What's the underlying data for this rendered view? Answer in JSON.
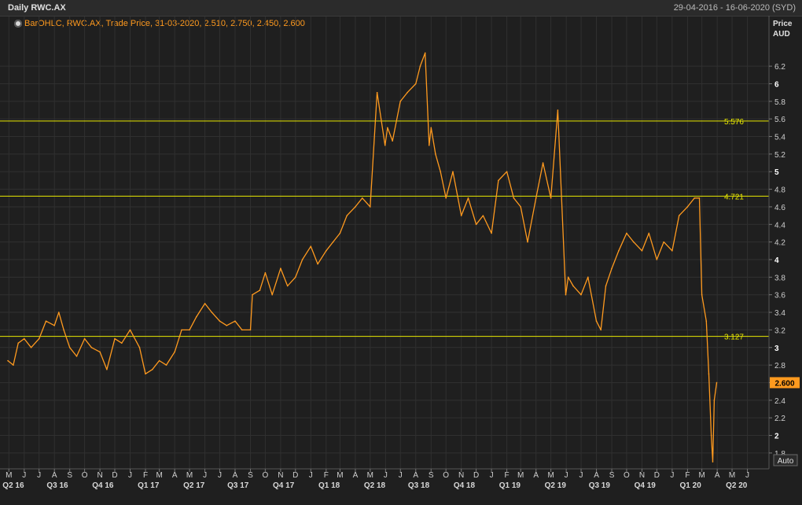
{
  "header": {
    "title": "Daily RWC.AX",
    "date_range": "29-04-2016 - 16-06-2020 (SYD)"
  },
  "legend": {
    "text": "BarOHLC, RWC.AX, Trade Price, 31-03-2020, 2.510, 2.750, 2.450, 2.600",
    "icon": "pin-icon"
  },
  "axis": {
    "price_label": "Price",
    "currency_label": "AUD",
    "auto_label": "Auto"
  },
  "colors": {
    "background": "#1f1f1f",
    "price_line": "#ff9a1f",
    "hline": "#e8e800",
    "grid": "#303030",
    "last_tag_bg": "#ff9a1f"
  },
  "chart_data": {
    "type": "line",
    "title": "Daily RWC.AX",
    "ylabel": "Price AUD",
    "ylim": [
      1.62,
      6.55
    ],
    "y_ticks": [
      1.8,
      2,
      2.2,
      2.4,
      2.6,
      2.8,
      3,
      3.2,
      3.4,
      3.6,
      3.8,
      4,
      4.2,
      4.4,
      4.6,
      4.8,
      5,
      5.2,
      5.4,
      5.6,
      5.8,
      6,
      6.2
    ],
    "y_tick_labels": [
      "1.8",
      "2",
      "2.2",
      "2.4",
      "2.6",
      "2.8",
      "3",
      "3.2",
      "3.4",
      "3.6",
      "3.8",
      "4",
      "4.2",
      "4.4",
      "4.6",
      "4.8",
      "5",
      "5.2",
      "5.4",
      "5.6",
      "5.8",
      "6",
      "6.2"
    ],
    "major_y_ticks": [
      2,
      3,
      4,
      5,
      6
    ],
    "x_range": [
      "2016-04-29",
      "2020-06-16"
    ],
    "months": [
      {
        "label": "M",
        "date": "2016-05-01"
      },
      {
        "label": "J",
        "date": "2016-06-01"
      },
      {
        "label": "J",
        "date": "2016-07-01"
      },
      {
        "label": "A",
        "date": "2016-08-01"
      },
      {
        "label": "S",
        "date": "2016-09-01"
      },
      {
        "label": "O",
        "date": "2016-10-01"
      },
      {
        "label": "N",
        "date": "2016-11-01"
      },
      {
        "label": "D",
        "date": "2016-12-01"
      },
      {
        "label": "J",
        "date": "2017-01-01"
      },
      {
        "label": "F",
        "date": "2017-02-01"
      },
      {
        "label": "M",
        "date": "2017-03-01"
      },
      {
        "label": "A",
        "date": "2017-04-01"
      },
      {
        "label": "M",
        "date": "2017-05-01"
      },
      {
        "label": "J",
        "date": "2017-06-01"
      },
      {
        "label": "J",
        "date": "2017-07-01"
      },
      {
        "label": "A",
        "date": "2017-08-01"
      },
      {
        "label": "S",
        "date": "2017-09-01"
      },
      {
        "label": "O",
        "date": "2017-10-01"
      },
      {
        "label": "N",
        "date": "2017-11-01"
      },
      {
        "label": "D",
        "date": "2017-12-01"
      },
      {
        "label": "J",
        "date": "2018-01-01"
      },
      {
        "label": "F",
        "date": "2018-02-01"
      },
      {
        "label": "M",
        "date": "2018-03-01"
      },
      {
        "label": "A",
        "date": "2018-04-01"
      },
      {
        "label": "M",
        "date": "2018-05-01"
      },
      {
        "label": "J",
        "date": "2018-06-01"
      },
      {
        "label": "J",
        "date": "2018-07-01"
      },
      {
        "label": "A",
        "date": "2018-08-01"
      },
      {
        "label": "S",
        "date": "2018-09-01"
      },
      {
        "label": "O",
        "date": "2018-10-01"
      },
      {
        "label": "N",
        "date": "2018-11-01"
      },
      {
        "label": "D",
        "date": "2018-12-01"
      },
      {
        "label": "J",
        "date": "2019-01-01"
      },
      {
        "label": "F",
        "date": "2019-02-01"
      },
      {
        "label": "M",
        "date": "2019-03-01"
      },
      {
        "label": "A",
        "date": "2019-04-01"
      },
      {
        "label": "M",
        "date": "2019-05-01"
      },
      {
        "label": "J",
        "date": "2019-06-01"
      },
      {
        "label": "J",
        "date": "2019-07-01"
      },
      {
        "label": "A",
        "date": "2019-08-01"
      },
      {
        "label": "S",
        "date": "2019-09-01"
      },
      {
        "label": "O",
        "date": "2019-10-01"
      },
      {
        "label": "N",
        "date": "2019-11-01"
      },
      {
        "label": "D",
        "date": "2019-12-01"
      },
      {
        "label": "J",
        "date": "2020-01-01"
      },
      {
        "label": "F",
        "date": "2020-02-01"
      },
      {
        "label": "M",
        "date": "2020-03-01"
      },
      {
        "label": "A",
        "date": "2020-04-01"
      },
      {
        "label": "M",
        "date": "2020-05-01"
      },
      {
        "label": "J",
        "date": "2020-06-01"
      }
    ],
    "quarters": [
      {
        "label": "Q2 16",
        "date": "2016-05-10"
      },
      {
        "label": "Q3 16",
        "date": "2016-08-07"
      },
      {
        "label": "Q4 16",
        "date": "2016-11-07"
      },
      {
        "label": "Q1 17",
        "date": "2017-02-07"
      },
      {
        "label": "Q2 17",
        "date": "2017-05-10"
      },
      {
        "label": "Q3 17",
        "date": "2017-08-07"
      },
      {
        "label": "Q4 17",
        "date": "2017-11-07"
      },
      {
        "label": "Q1 18",
        "date": "2018-02-07"
      },
      {
        "label": "Q2 18",
        "date": "2018-05-10"
      },
      {
        "label": "Q3 18",
        "date": "2018-08-07"
      },
      {
        "label": "Q4 18",
        "date": "2018-11-07"
      },
      {
        "label": "Q1 19",
        "date": "2019-02-07"
      },
      {
        "label": "Q2 19",
        "date": "2019-05-10"
      },
      {
        "label": "Q3 19",
        "date": "2019-08-07"
      },
      {
        "label": "Q4 19",
        "date": "2019-11-07"
      },
      {
        "label": "Q1 20",
        "date": "2020-02-07"
      },
      {
        "label": "Q2 20",
        "date": "2020-05-10"
      }
    ],
    "horizontal_lines": [
      {
        "value": 5.576,
        "label": "5.576"
      },
      {
        "value": 4.721,
        "label": "4.721"
      },
      {
        "value": 3.127,
        "label": "3.127"
      }
    ],
    "last_price": {
      "value": 2.6,
      "label": "2.600"
    },
    "series": [
      {
        "x": [
          "2016-04-29",
          "2016-05-10",
          "2016-05-20",
          "2016-06-01",
          "2016-06-15",
          "2016-07-01",
          "2016-07-15",
          "2016-08-01",
          "2016-08-10",
          "2016-08-20",
          "2016-09-01",
          "2016-09-15",
          "2016-10-01",
          "2016-10-15",
          "2016-11-01",
          "2016-11-15",
          "2016-12-01",
          "2016-12-15",
          "2017-01-01",
          "2017-01-20",
          "2017-02-01",
          "2017-02-15",
          "2017-03-01",
          "2017-03-15",
          "2017-04-01",
          "2017-04-15",
          "2017-05-01",
          "2017-05-15",
          "2017-06-01",
          "2017-06-15",
          "2017-07-01",
          "2017-07-15",
          "2017-08-01",
          "2017-08-15",
          "2017-09-01",
          "2017-09-05",
          "2017-09-20",
          "2017-10-01",
          "2017-10-15",
          "2017-11-01",
          "2017-11-15",
          "2017-12-01",
          "2017-12-15",
          "2018-01-01",
          "2018-01-15",
          "2018-02-01",
          "2018-02-15",
          "2018-03-01",
          "2018-03-15",
          "2018-04-01",
          "2018-04-15",
          "2018-05-01",
          "2018-05-15",
          "2018-05-31",
          "2018-06-05",
          "2018-06-15",
          "2018-07-01",
          "2018-07-15",
          "2018-08-01",
          "2018-08-10",
          "2018-08-20",
          "2018-08-28",
          "2018-09-01",
          "2018-09-10",
          "2018-09-20",
          "2018-10-01",
          "2018-10-15",
          "2018-11-01",
          "2018-11-15",
          "2018-12-01",
          "2018-12-15",
          "2019-01-01",
          "2019-01-15",
          "2019-02-01",
          "2019-02-15",
          "2019-03-01",
          "2019-03-15",
          "2019-04-01",
          "2019-04-15",
          "2019-05-01",
          "2019-05-15",
          "2019-05-31",
          "2019-06-05",
          "2019-06-15",
          "2019-07-01",
          "2019-07-15",
          "2019-08-01",
          "2019-08-10",
          "2019-08-20",
          "2019-09-01",
          "2019-09-15",
          "2019-10-01",
          "2019-10-15",
          "2019-11-01",
          "2019-11-15",
          "2019-12-01",
          "2019-12-15",
          "2020-01-01",
          "2020-01-15",
          "2020-02-01",
          "2020-02-15",
          "2020-02-25",
          "2020-03-01",
          "2020-03-10",
          "2020-03-15",
          "2020-03-20",
          "2020-03-23",
          "2020-03-26",
          "2020-03-31"
        ],
        "y": [
          2.85,
          2.8,
          3.05,
          3.1,
          3.0,
          3.1,
          3.3,
          3.25,
          3.4,
          3.2,
          3.0,
          2.9,
          3.1,
          3.0,
          2.95,
          2.75,
          3.1,
          3.05,
          3.2,
          3.0,
          2.7,
          2.75,
          2.85,
          2.8,
          2.95,
          3.2,
          3.2,
          3.35,
          3.5,
          3.4,
          3.3,
          3.25,
          3.3,
          3.2,
          3.2,
          3.6,
          3.65,
          3.85,
          3.6,
          3.9,
          3.7,
          3.8,
          4.0,
          4.15,
          3.95,
          4.1,
          4.2,
          4.3,
          4.5,
          4.6,
          4.7,
          4.6,
          5.9,
          5.3,
          5.5,
          5.35,
          5.8,
          5.9,
          6.0,
          6.2,
          6.35,
          5.3,
          5.5,
          5.2,
          5.0,
          4.7,
          5.0,
          4.5,
          4.7,
          4.4,
          4.5,
          4.3,
          4.9,
          5.0,
          4.7,
          4.6,
          4.2,
          4.7,
          5.1,
          4.7,
          5.7,
          3.6,
          3.8,
          3.7,
          3.6,
          3.8,
          3.3,
          3.2,
          3.7,
          3.9,
          4.1,
          4.3,
          4.2,
          4.1,
          4.3,
          4.0,
          4.2,
          4.1,
          4.5,
          4.6,
          4.7,
          4.7,
          3.6,
          3.3,
          2.7,
          2.0,
          1.7,
          2.4,
          2.6
        ]
      }
    ]
  }
}
